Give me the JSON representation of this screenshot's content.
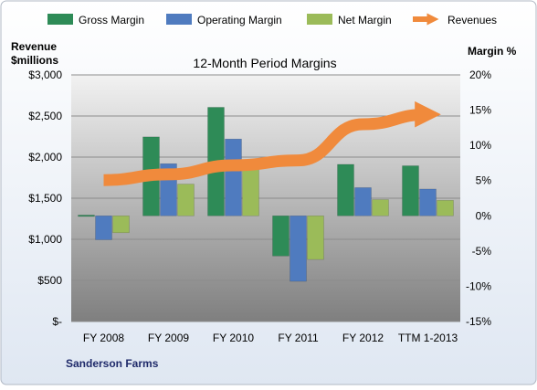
{
  "chart_data": {
    "type": "bar",
    "title": "12-Month Period Margins",
    "company": "Sanderson Farms",
    "left_axis": {
      "label_line1": "Revenue",
      "label_line2": "$millions",
      "ylim": [
        0,
        3000
      ],
      "ticks": [
        0,
        500,
        1000,
        1500,
        2000,
        2500,
        3000
      ],
      "tick_labels": [
        "$-",
        "$500",
        "$1,000",
        "$1,500",
        "$2,000",
        "$2,500",
        "$3,000"
      ]
    },
    "right_axis": {
      "label": "Margin %",
      "ylim": [
        -15,
        20
      ],
      "ticks": [
        -15,
        -10,
        -5,
        0,
        5,
        10,
        15,
        20
      ],
      "tick_labels": [
        "-15%",
        "-10%",
        "-5%",
        "0%",
        "5%",
        "10%",
        "15%",
        "20%"
      ]
    },
    "categories": [
      "FY 2008",
      "FY 2009",
      "FY 2010",
      "FY 2011",
      "FY 2012",
      "TTM 1-2013"
    ],
    "series": [
      {
        "name": "Gross Margin",
        "axis": "right",
        "color": "#2e8b57",
        "values": [
          0.1,
          11.2,
          15.4,
          -5.7,
          7.3,
          7.1
        ]
      },
      {
        "name": "Operating Margin",
        "axis": "right",
        "color": "#4f7bbf",
        "values": [
          -3.4,
          7.4,
          10.9,
          -9.3,
          4.0,
          3.8
        ]
      },
      {
        "name": "Net Margin",
        "axis": "right",
        "color": "#9bbb59",
        "values": [
          -2.4,
          4.5,
          7.1,
          -6.2,
          2.3,
          2.2
        ]
      },
      {
        "name": "Revenues",
        "axis": "left",
        "type": "line",
        "color": "#f08a3c",
        "values": [
          1720,
          1790,
          1900,
          1960,
          2400,
          2520
        ]
      }
    ],
    "legend": "top",
    "grid": true
  }
}
